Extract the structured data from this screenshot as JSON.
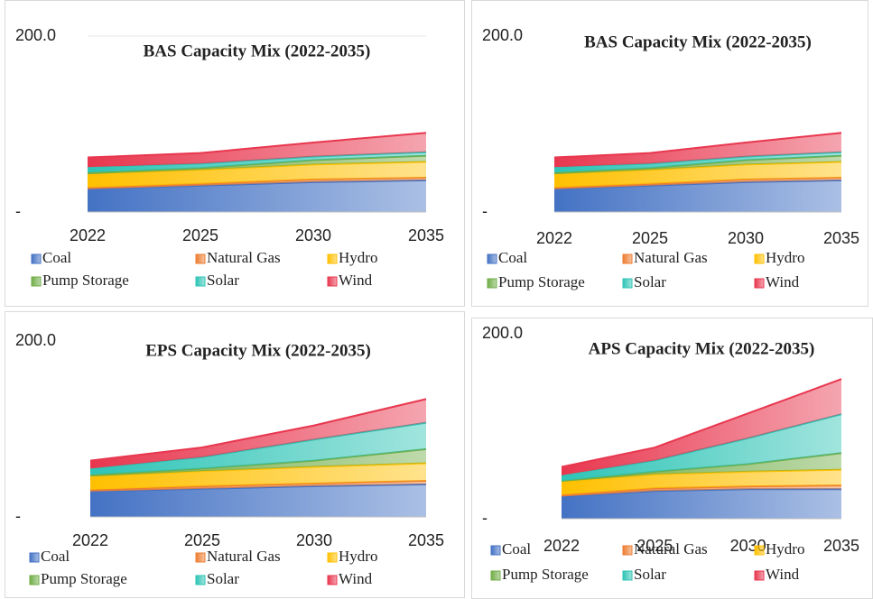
{
  "chart_data": [
    {
      "type": "area",
      "stacked": true,
      "title": "BAS Capacity Mix (2022-2035)",
      "categories": [
        "2022",
        "2025",
        "2030",
        "2035"
      ],
      "ylim": [
        0,
        200
      ],
      "yticks": [
        {
          "value": 0,
          "label": "-"
        },
        {
          "value": 200,
          "label": "200.0"
        }
      ],
      "grid": true,
      "series": [
        {
          "name": "Coal",
          "color": "#4472c4",
          "values": [
            26,
            30,
            34,
            36
          ]
        },
        {
          "name": "Natural Gas",
          "color": "#ed7d31",
          "values": [
            2,
            2,
            3,
            3
          ]
        },
        {
          "name": "Hydro",
          "color": "#ffc000",
          "values": [
            15,
            16,
            17,
            18
          ]
        },
        {
          "name": "Pump Storage",
          "color": "#70ad47",
          "values": [
            2,
            2,
            5,
            7
          ]
        },
        {
          "name": "Solar",
          "color": "#2ec4b6",
          "values": [
            6,
            5,
            4,
            4
          ]
        },
        {
          "name": "Wind",
          "color": "#e8374f",
          "values": [
            11,
            12,
            16,
            22
          ]
        }
      ]
    },
    {
      "type": "area",
      "stacked": true,
      "title": "BAS Capacity Mix (2022-2035)",
      "categories": [
        "2022",
        "2025",
        "2030",
        "2035"
      ],
      "ylim": [
        0,
        200
      ],
      "yticks": [
        {
          "value": 0,
          "label": "-"
        },
        {
          "value": 200,
          "label": "200.0"
        }
      ],
      "grid": false,
      "series": [
        {
          "name": "Coal",
          "color": "#4472c4",
          "values": [
            26,
            30,
            34,
            36
          ]
        },
        {
          "name": "Natural Gas",
          "color": "#ed7d31",
          "values": [
            2,
            2,
            3,
            3
          ]
        },
        {
          "name": "Hydro",
          "color": "#ffc000",
          "values": [
            15,
            16,
            17,
            18
          ]
        },
        {
          "name": "Pump Storage",
          "color": "#70ad47",
          "values": [
            2,
            2,
            5,
            7
          ]
        },
        {
          "name": "Solar",
          "color": "#2ec4b6",
          "values": [
            6,
            5,
            4,
            4
          ]
        },
        {
          "name": "Wind",
          "color": "#e8374f",
          "values": [
            11,
            12,
            16,
            22
          ]
        }
      ]
    },
    {
      "type": "area",
      "stacked": true,
      "title": "EPS Capacity Mix (2022-2035)",
      "categories": [
        "2022",
        "2025",
        "2030",
        "2035"
      ],
      "ylim": [
        0,
        200
      ],
      "yticks": [
        {
          "value": 0,
          "label": "-"
        },
        {
          "value": 200,
          "label": "200.0"
        }
      ],
      "grid": false,
      "series": [
        {
          "name": "Coal",
          "color": "#4472c4",
          "values": [
            29,
            32,
            35,
            37
          ]
        },
        {
          "name": "Natural Gas",
          "color": "#ed7d31",
          "values": [
            2,
            3,
            3,
            4
          ]
        },
        {
          "name": "Hydro",
          "color": "#ffc000",
          "values": [
            15,
            17,
            19,
            20
          ]
        },
        {
          "name": "Pump Storage",
          "color": "#70ad47",
          "values": [
            2,
            3,
            7,
            16
          ]
        },
        {
          "name": "Solar",
          "color": "#2ec4b6",
          "values": [
            7,
            13,
            24,
            30
          ]
        },
        {
          "name": "Wind",
          "color": "#e8374f",
          "values": [
            9,
            11,
            16,
            27
          ]
        }
      ]
    },
    {
      "type": "area",
      "stacked": true,
      "title": "APS Capacity Mix (2022-2035)",
      "categories": [
        "2022",
        "2025",
        "2030",
        "2035"
      ],
      "ylim": [
        0,
        200
      ],
      "yticks": [
        {
          "value": 0,
          "label": "-"
        },
        {
          "value": 200,
          "label": "200.0"
        }
      ],
      "grid": false,
      "series": [
        {
          "name": "Coal",
          "color": "#4472c4",
          "values": [
            24,
            30,
            32,
            32
          ]
        },
        {
          "name": "Natural Gas",
          "color": "#ed7d31",
          "values": [
            2,
            3,
            3,
            4
          ]
        },
        {
          "name": "Hydro",
          "color": "#ffc000",
          "values": [
            14,
            15,
            16,
            17
          ]
        },
        {
          "name": "Pump Storage",
          "color": "#70ad47",
          "values": [
            1,
            3,
            8,
            18
          ]
        },
        {
          "name": "Solar",
          "color": "#2ec4b6",
          "values": [
            6,
            12,
            28,
            42
          ]
        },
        {
          "name": "Wind",
          "color": "#e8374f",
          "values": [
            9,
            14,
            27,
            38
          ]
        }
      ]
    }
  ]
}
